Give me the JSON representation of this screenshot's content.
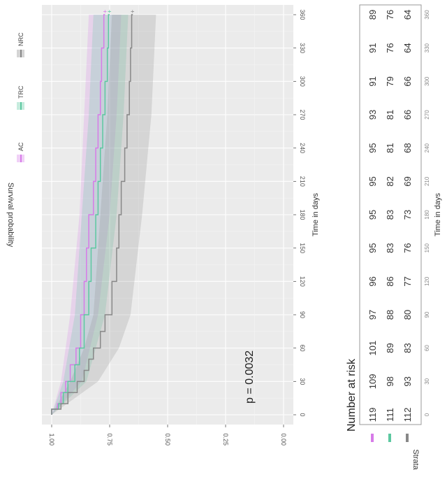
{
  "chart_data": {
    "type": "line",
    "subtype": "kaplan-meier",
    "title": "",
    "xlabel": "Time in days",
    "ylabel": "Survival probability",
    "xlim": [
      0,
      360
    ],
    "ylim": [
      0,
      1
    ],
    "x_ticks": [
      "0",
      "30",
      "60",
      "90",
      "120",
      "150",
      "180",
      "210",
      "240",
      "270",
      "300",
      "330",
      "360"
    ],
    "y_ticks": [
      "0.00",
      "0.25",
      "0.50",
      "0.75",
      "1.00"
    ],
    "grid": true,
    "confidence_bands": true,
    "legend_position": "top",
    "annotation": "p = 0.0032",
    "series": [
      {
        "name": "AC",
        "color": "#d77be8",
        "points": [
          [
            0,
            1.0
          ],
          [
            5,
            0.975
          ],
          [
            10,
            0.96
          ],
          [
            20,
            0.94
          ],
          [
            30,
            0.92
          ],
          [
            45,
            0.895
          ],
          [
            60,
            0.875
          ],
          [
            90,
            0.86
          ],
          [
            120,
            0.85
          ],
          [
            150,
            0.84
          ],
          [
            180,
            0.82
          ],
          [
            210,
            0.81
          ],
          [
            240,
            0.8
          ],
          [
            270,
            0.79
          ],
          [
            300,
            0.785
          ],
          [
            330,
            0.775
          ],
          [
            360,
            0.77
          ]
        ],
        "band": [
          [
            0,
            1.0,
            1.0
          ],
          [
            30,
            0.87,
            0.96
          ],
          [
            90,
            0.8,
            0.92
          ],
          [
            180,
            0.75,
            0.88
          ],
          [
            270,
            0.72,
            0.86
          ],
          [
            360,
            0.7,
            0.84
          ]
        ]
      },
      {
        "name": "TRC",
        "color": "#5cc8a0",
        "points": [
          [
            0,
            1.0
          ],
          [
            5,
            0.97
          ],
          [
            10,
            0.95
          ],
          [
            20,
            0.93
          ],
          [
            30,
            0.9
          ],
          [
            45,
            0.88
          ],
          [
            60,
            0.86
          ],
          [
            90,
            0.84
          ],
          [
            120,
            0.83
          ],
          [
            150,
            0.81
          ],
          [
            180,
            0.8
          ],
          [
            210,
            0.79
          ],
          [
            240,
            0.78
          ],
          [
            270,
            0.77
          ],
          [
            300,
            0.76
          ],
          [
            330,
            0.755
          ],
          [
            360,
            0.75
          ]
        ],
        "band": [
          [
            0,
            1.0,
            1.0
          ],
          [
            30,
            0.85,
            0.95
          ],
          [
            90,
            0.77,
            0.9
          ],
          [
            180,
            0.72,
            0.87
          ],
          [
            270,
            0.69,
            0.84
          ],
          [
            360,
            0.67,
            0.82
          ]
        ]
      },
      {
        "name": "NRC",
        "color": "#888888",
        "points": [
          [
            0,
            1.0
          ],
          [
            5,
            0.96
          ],
          [
            10,
            0.93
          ],
          [
            20,
            0.89
          ],
          [
            30,
            0.86
          ],
          [
            40,
            0.84
          ],
          [
            50,
            0.82
          ],
          [
            60,
            0.79
          ],
          [
            75,
            0.77
          ],
          [
            90,
            0.74
          ],
          [
            120,
            0.72
          ],
          [
            150,
            0.71
          ],
          [
            180,
            0.7
          ],
          [
            210,
            0.685
          ],
          [
            240,
            0.675
          ],
          [
            270,
            0.665
          ],
          [
            300,
            0.66
          ],
          [
            330,
            0.655
          ],
          [
            360,
            0.65
          ]
        ],
        "band": [
          [
            0,
            1.0,
            1.0
          ],
          [
            30,
            0.8,
            0.92
          ],
          [
            60,
            0.71,
            0.86
          ],
          [
            90,
            0.66,
            0.82
          ],
          [
            180,
            0.61,
            0.79
          ],
          [
            270,
            0.57,
            0.76
          ],
          [
            360,
            0.55,
            0.74
          ]
        ]
      }
    ],
    "risk_table": {
      "title": "Number at risk",
      "legend_title": "Strata",
      "time_ticks": [
        "0",
        "30",
        "60",
        "90",
        "120",
        "150",
        "180",
        "210",
        "240",
        "270",
        "300",
        "330",
        "360"
      ],
      "xlabel": "Time in days",
      "rows": [
        {
          "name": "AC",
          "color": "#d77be8",
          "values": [
            "119",
            "109",
            "101",
            "97",
            "96",
            "95",
            "95",
            "95",
            "95",
            "93",
            "91",
            "91",
            "89"
          ]
        },
        {
          "name": "TRC",
          "color": "#5cc8a0",
          "values": [
            "111",
            "98",
            "89",
            "88",
            "86",
            "83",
            "83",
            "82",
            "81",
            "81",
            "79",
            "76",
            "76"
          ]
        },
        {
          "name": "NRC",
          "color": "#888888",
          "values": [
            "112",
            "93",
            "83",
            "80",
            "77",
            "76",
            "73",
            "69",
            "68",
            "66",
            "66",
            "64",
            "64"
          ]
        }
      ]
    }
  }
}
